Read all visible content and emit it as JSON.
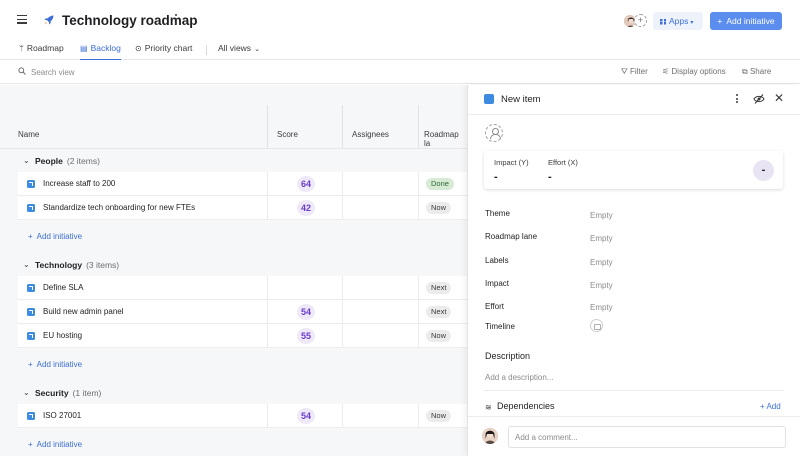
{
  "header": {
    "title": "Technology roadmap",
    "apps_label": "Apps",
    "add_initiative_label": "Add initiative"
  },
  "tabs": [
    {
      "label": "Roadmap",
      "icon": "roadmap-icon"
    },
    {
      "label": "Backlog",
      "icon": "backlog-icon",
      "active": true
    },
    {
      "label": "Priority chart",
      "icon": "priority-chart-icon"
    },
    {
      "label": "All views",
      "icon": "chevron-down-icon"
    }
  ],
  "toolbar": {
    "search_placeholder": "Search view",
    "filter_label": "Filter",
    "display_options_label": "Display options",
    "share_label": "Share"
  },
  "table": {
    "columns": [
      "Name",
      "Score",
      "Assignees",
      "Roadmap la"
    ],
    "add_initiative_label": "Add initiative",
    "groups": [
      {
        "name": "People",
        "count": "(2 items)",
        "rows": [
          {
            "name": "Increase staff to 200",
            "score": "64",
            "lane": "Done"
          },
          {
            "name": "Standardize tech onboarding for new FTEs",
            "score": "42",
            "lane": "Now"
          }
        ]
      },
      {
        "name": "Technology",
        "count": "(3 items)",
        "rows": [
          {
            "name": "Define SLA",
            "score": "",
            "lane": "Next"
          },
          {
            "name": "Build new admin panel",
            "score": "54",
            "lane": "Next"
          },
          {
            "name": "EU hosting",
            "score": "55",
            "lane": "Now"
          }
        ]
      },
      {
        "name": "Security",
        "count": "(1 item)",
        "rows": [
          {
            "name": "ISO 27001",
            "score": "54",
            "lane": "Now"
          }
        ]
      }
    ]
  },
  "panel": {
    "title": "New item",
    "impact_label": "Impact",
    "impact_key": "(Y)",
    "impact_value": "-",
    "effort_label": "Effort",
    "effort_key": "(X)",
    "effort_value": "-",
    "score_value": "-",
    "fields": [
      {
        "label": "Theme",
        "value": "Empty"
      },
      {
        "label": "Roadmap lane",
        "value": "Empty"
      },
      {
        "label": "Labels",
        "value": "Empty"
      },
      {
        "label": "Impact",
        "value": "Empty"
      },
      {
        "label": "Effort",
        "value": "Empty"
      },
      {
        "label": "Timeline",
        "value": ""
      }
    ],
    "description_label": "Description",
    "description_placeholder": "Add a description...",
    "dependencies_label": "Dependencies",
    "dependencies_add": "+ Add",
    "comment_placeholder": "Add a comment..."
  },
  "colors": {
    "accent": "#5b8def",
    "score_badge_bg": "#efe8f9",
    "score_badge_text": "#6b3fc4",
    "done_lane_bg": "#d6ead6"
  }
}
